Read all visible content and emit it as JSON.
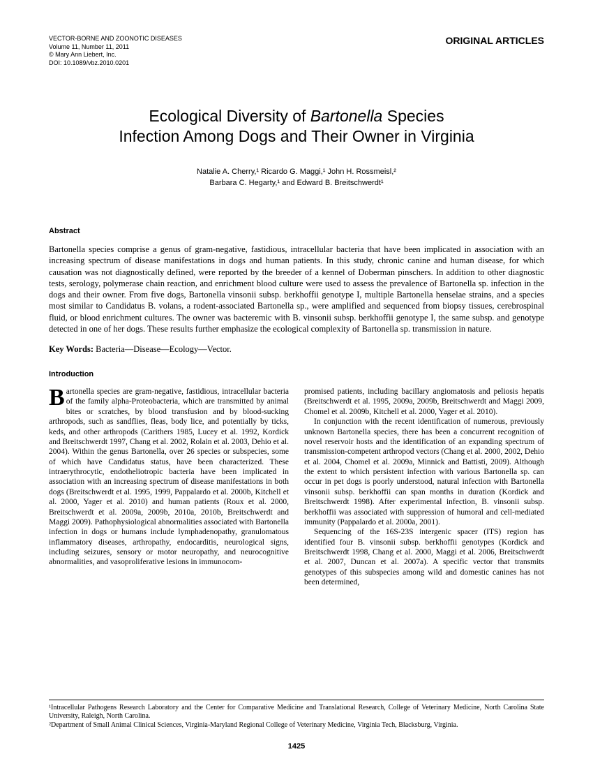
{
  "header": {
    "journal": "VECTOR-BORNE AND ZOONOTIC DISEASES",
    "issue": "Volume 11, Number 11, 2011",
    "copyright": "© Mary Ann Liebert, Inc.",
    "doi": "DOI: 10.1089/vbz.2010.0201",
    "section_label": "ORIGINAL ARTICLES"
  },
  "title": {
    "line1_pre": "Ecological Diversity of ",
    "line1_italic": "Bartonella",
    "line1_post": " Species",
    "line2": "Infection Among Dogs and Their Owner in Virginia"
  },
  "authors": {
    "line1": "Natalie A. Cherry,¹ Ricardo G. Maggi,¹ John H. Rossmeisl,²",
    "line2": "Barbara C. Hegarty,¹ and Edward B. Breitschwerdt¹"
  },
  "abstract": {
    "heading": "Abstract",
    "text": "Bartonella species comprise a genus of gram-negative, fastidious, intracellular bacteria that have been implicated in association with an increasing spectrum of disease manifestations in dogs and human patients. In this study, chronic canine and human disease, for which causation was not diagnostically defined, were reported by the breeder of a kennel of Doberman pinschers. In addition to other diagnostic tests, serology, polymerase chain reaction, and enrichment blood culture were used to assess the prevalence of Bartonella sp. infection in the dogs and their owner. From five dogs, Bartonella vinsonii subsp. berkhoffii genotype I, multiple Bartonella henselae strains, and a species most similar to Candidatus B. volans, a rodent-associated Bartonella sp., were amplified and sequenced from biopsy tissues, cerebrospinal fluid, or blood enrichment cultures. The owner was bacteremic with B. vinsonii subsp. berkhoffii genotype I, the same subsp. and genotype detected in one of her dogs. These results further emphasize the ecological complexity of Bartonella sp. transmission in nature."
  },
  "keywords": {
    "label": "Key Words:",
    "text": " Bacteria—Disease—Ecology—Vector."
  },
  "introduction": {
    "heading": "Introduction",
    "col1_p1": "artonella species are gram-negative, fastidious, intracellular bacteria of the family alpha-Proteobacteria, which are transmitted by animal bites or scratches, by blood transfusion and by blood-sucking arthropods, such as sandflies, fleas, body lice, and potentially by ticks, keds, and other arthropods (Carithers 1985, Lucey et al. 1992, Kordick and Breitschwerdt 1997, Chang et al. 2002, Rolain et al. 2003, Dehio et al. 2004). Within the genus Bartonella, over 26 species or subspecies, some of which have Candidatus status, have been characterized. These intraerythrocytic, endotheliotropic bacteria have been implicated in association with an increasing spectrum of disease manifestations in both dogs (Breitschwerdt et al. 1995, 1999, Pappalardo et al. 2000b, Kitchell et al. 2000, Yager et al. 2010) and human patients (Roux et al. 2000, Breitschwerdt et al. 2009a, 2009b, 2010a, 2010b, Breitschwerdt and Maggi 2009). Pathophysiological abnormalities associated with Bartonella infection in dogs or humans include lymphadenopathy, granulomatous inflammatory diseases, arthropathy, endocarditis, neurological signs, including seizures, sensory or motor neuropathy, and neurocognitive abnormalities, and vasoproliferative lesions in immunocom-",
    "col2_p1": "promised patients, including bacillary angiomatosis and peliosis hepatis (Breitschwerdt et al. 1995, 2009a, 2009b, Breitschwerdt and Maggi 2009, Chomel et al. 2009b, Kitchell et al. 2000, Yager et al. 2010).",
    "col2_p2": "In conjunction with the recent identification of numerous, previously unknown Bartonella species, there has been a concurrent recognition of novel reservoir hosts and the identification of an expanding spectrum of transmission-competent arthropod vectors (Chang et al. 2000, 2002, Dehio et al. 2004, Chomel et al. 2009a, Minnick and Battisti, 2009). Although the extent to which persistent infection with various Bartonella sp. can occur in pet dogs is poorly understood, natural infection with Bartonella vinsonii subsp. berkhoffii can span months in duration (Kordick and Breitschwerdt 1998). After experimental infection, B. vinsonii subsp. berkhoffii was associated with suppression of humoral and cell-mediated immunity (Pappalardo et al. 2000a, 2001).",
    "col2_p3": "Sequencing of the 16S-23S intergenic spacer (ITS) region has identified four B. vinsonii subsp. berkhoffii genotypes (Kordick and Breitschwerdt 1998, Chang et al. 2000, Maggi et al. 2006, Breitschwerdt et al. 2007, Duncan et al. 2007a). A specific vector that transmits genotypes of this subspecies among wild and domestic canines has not been determined,"
  },
  "footnotes": {
    "f1": "¹Intracellular Pathogens Research Laboratory and the Center for Comparative Medicine and Translational Research, College of Veterinary Medicine, North Carolina State University, Raleigh, North Carolina.",
    "f2": "²Department of Small Animal Clinical Sciences, Virginia-Maryland Regional College of Veterinary Medicine, Virginia Tech, Blacksburg, Virginia."
  },
  "pagenum": "1425"
}
